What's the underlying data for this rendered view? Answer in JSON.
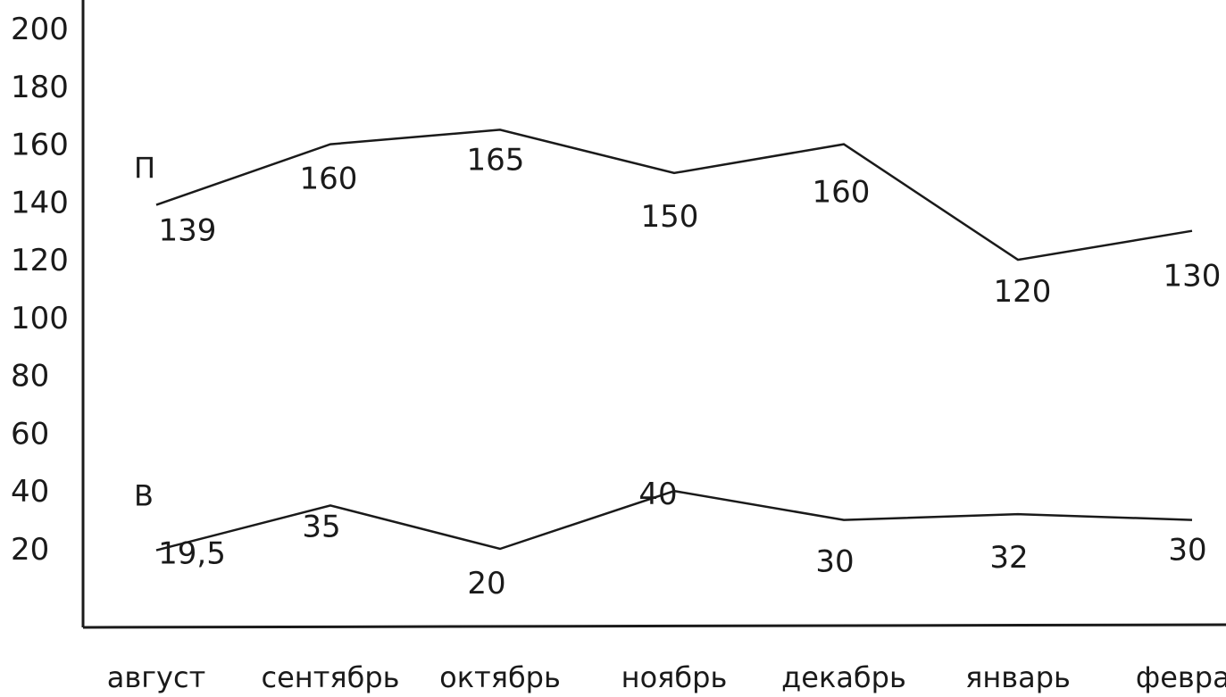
{
  "chart_data": {
    "type": "line",
    "title": "",
    "xlabel": "",
    "ylabel": "",
    "ylim": [
      0,
      200
    ],
    "y_ticks": [
      "20",
      "40",
      "60",
      "80",
      "100",
      "120",
      "140",
      "160",
      "180",
      "200"
    ],
    "categories": [
      "август",
      "сентябрь",
      "октябрь",
      "ноябрь",
      "декабрь",
      "январь",
      "феврал"
    ],
    "grid": false,
    "legend": "none",
    "series": [
      {
        "name": "П",
        "values": [
          139,
          160,
          165,
          150,
          160,
          120,
          130
        ],
        "labels": [
          "139",
          "160",
          "165",
          "150",
          "160",
          "120",
          "130"
        ]
      },
      {
        "name": "В",
        "values": [
          19.5,
          35,
          20,
          40,
          30,
          32,
          30
        ],
        "labels": [
          "19,5",
          "35",
          "20",
          "40",
          "30",
          "32",
          "30"
        ]
      }
    ]
  }
}
